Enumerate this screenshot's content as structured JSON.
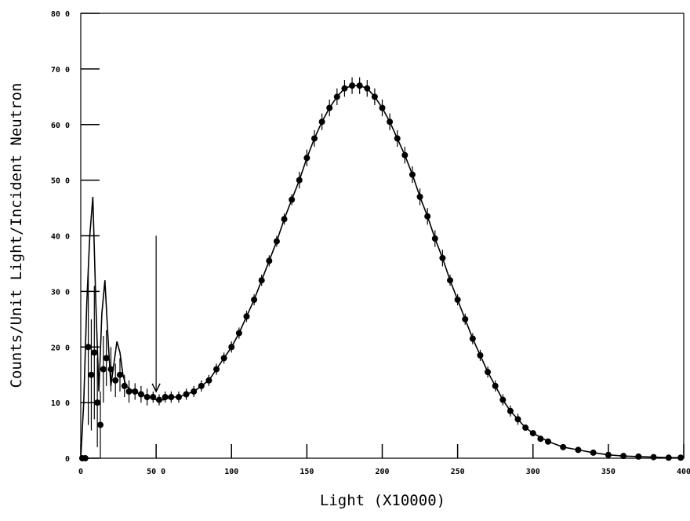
{
  "chart_data": {
    "type": "scatter",
    "title": "",
    "xlabel": "Light (X10000)",
    "ylabel": "Counts/Unit Light/Incident Neutron",
    "xlim": [
      0,
      400
    ],
    "ylim": [
      0,
      80
    ],
    "x_tick_labels": [
      "0",
      "50 0",
      "100",
      "150",
      "200",
      "250",
      "300",
      "350",
      "400"
    ],
    "y_tick_labels": [
      "0",
      "10 0",
      "20 0",
      "30 0",
      "40 0",
      "50 0",
      "60 0",
      "70 0",
      "80 0"
    ],
    "grid": false,
    "legend": "none",
    "annotations": [
      {
        "type": "arrow",
        "x": 50,
        "y_from": 40,
        "y_to": 12
      }
    ],
    "series": [
      {
        "style": "points-with-error-bars",
        "x": [
          1,
          3,
          5,
          7,
          9,
          11,
          13,
          15,
          17,
          20,
          23,
          26,
          29,
          32,
          36,
          40,
          44,
          48,
          52,
          56,
          60,
          65,
          70,
          75,
          80,
          85,
          90,
          95,
          100,
          105,
          110,
          115,
          120,
          125,
          130,
          135,
          140,
          145,
          150,
          155,
          160,
          165,
          170,
          175,
          180,
          185,
          190,
          195,
          200,
          205,
          210,
          215,
          220,
          225,
          230,
          235,
          240,
          245,
          250,
          255,
          260,
          265,
          270,
          275,
          280,
          285,
          290,
          295,
          300,
          305,
          310,
          320,
          330,
          340,
          350,
          360,
          370,
          380,
          390,
          398
        ],
        "y": [
          0,
          0,
          20,
          15,
          19,
          10,
          6,
          16,
          18,
          16,
          14,
          15,
          13,
          12,
          12,
          11.5,
          11,
          11,
          10.5,
          11,
          11,
          11,
          11.5,
          12,
          13,
          14,
          16,
          18,
          20,
          22.5,
          25.5,
          28.5,
          32,
          35.5,
          39,
          43,
          46.5,
          50,
          54,
          57.5,
          60.5,
          63,
          65,
          66.5,
          67,
          67,
          66.5,
          65,
          63,
          60.5,
          57.5,
          54.5,
          51,
          47,
          43.5,
          39.5,
          36,
          32,
          28.5,
          25,
          21.5,
          18.5,
          15.5,
          13,
          10.5,
          8.5,
          7,
          5.5,
          4.5,
          3.5,
          3,
          2,
          1.5,
          1,
          0.6,
          0.4,
          0.3,
          0.2,
          0.1,
          0.1
        ],
        "err": [
          0,
          0,
          14,
          10,
          12,
          8,
          6,
          6,
          5,
          4,
          3,
          3,
          2,
          2,
          1.5,
          1.5,
          1.5,
          1,
          1,
          1,
          1,
          1,
          1,
          1,
          1,
          1,
          1,
          1,
          1,
          1,
          1,
          1,
          1,
          1,
          1,
          1,
          1,
          1.5,
          1.5,
          1.5,
          1.5,
          1.5,
          1.5,
          1.5,
          1.5,
          1.5,
          1.5,
          1.5,
          1.5,
          1.5,
          1.5,
          1.5,
          1.5,
          1.5,
          1.5,
          1.5,
          1.5,
          1,
          1,
          1,
          1,
          1,
          1,
          1,
          1,
          1,
          1,
          0.5,
          0.5,
          0.5,
          0.5,
          0.5,
          0.5,
          0.5,
          0.5,
          0.5,
          0.5,
          0.5,
          0.5,
          0.5
        ]
      },
      {
        "style": "line",
        "x": [
          0,
          2,
          4,
          6,
          8,
          10,
          12,
          14,
          16,
          18,
          20,
          22,
          24,
          26,
          28,
          30,
          35,
          40,
          45,
          50,
          55,
          60,
          65,
          70,
          75,
          80,
          85,
          90,
          95,
          100,
          105,
          110,
          115,
          120,
          125,
          130,
          135,
          140,
          145,
          150,
          155,
          160,
          165,
          170,
          175,
          180,
          185,
          190,
          195,
          200,
          205,
          210,
          215,
          220,
          225,
          230,
          235,
          240,
          245,
          250,
          255,
          260,
          265,
          270,
          275,
          280,
          285,
          290,
          295,
          300,
          310,
          320,
          330,
          340,
          350,
          360,
          370,
          380,
          390,
          400
        ],
        "y": [
          0,
          10,
          28,
          40,
          47,
          28,
          12,
          26,
          32,
          22,
          13,
          17,
          21,
          19,
          15,
          13,
          12,
          11.5,
          11,
          10.5,
          10.5,
          11,
          11,
          11.5,
          12,
          13,
          14,
          16,
          18,
          20,
          22.5,
          25.5,
          28.5,
          32,
          35.5,
          39,
          43,
          46.5,
          50,
          54,
          57.5,
          60.5,
          63,
          65,
          66.5,
          67,
          67,
          66.5,
          65,
          63,
          60.5,
          57.5,
          54.5,
          51,
          47,
          43.5,
          39.5,
          36,
          32,
          28.5,
          25,
          21.5,
          18.5,
          15.5,
          13,
          10.5,
          8.5,
          7,
          5.5,
          4.5,
          3,
          2,
          1.5,
          1,
          0.6,
          0.4,
          0.3,
          0.2,
          0.1,
          0.1
        ]
      }
    ]
  }
}
